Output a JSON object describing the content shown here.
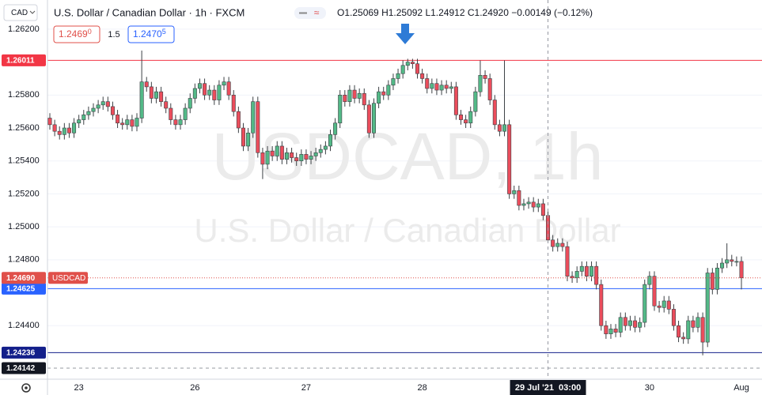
{
  "chart_data": {
    "type": "candlestick",
    "currency": "CAD",
    "title": "U.S. Dollar / Canadian Dollar · 1h · FXCM",
    "legend_values": [
      "O1.25069",
      "H1.25092",
      "L1.24912",
      "C1.24920",
      "−0.00149 (−0.12%)"
    ],
    "sell": {
      "main": "1.2469",
      "pip": "0"
    },
    "spread": "1.5",
    "buy": {
      "main": "1.2470",
      "pip": "5"
    },
    "watermark": [
      "USDCAD, 1h",
      "U.S. Dollar / Canadian Dollar"
    ],
    "up_color": "#53b987",
    "down_color": "#eb4d5c",
    "grid": true,
    "ylim": [
      1.24075,
      1.26377
    ],
    "yticks": [
      {
        "value": 1.262,
        "label": "1.26200"
      },
      {
        "value": 1.258,
        "label": "1.25800"
      },
      {
        "value": 1.256,
        "label": "1.25600"
      },
      {
        "value": 1.254,
        "label": "1.25400"
      },
      {
        "value": 1.252,
        "label": "1.25200"
      },
      {
        "value": 1.25,
        "label": "1.25000"
      },
      {
        "value": 1.248,
        "label": "1.24800"
      },
      {
        "value": 1.244,
        "label": "1.24400"
      }
    ],
    "price_lines": [
      {
        "value": 1.26011,
        "color": "#f23645"
      },
      {
        "value": 1.24625,
        "color": "#2962ff"
      },
      {
        "value": 1.24236,
        "color": "#131f8a"
      }
    ],
    "last_price": {
      "value": 1.2469,
      "label": "1.24690",
      "tag": "USDCAD",
      "color": "#e0504a"
    },
    "crosshair": {
      "index": 103,
      "y_value": 1.24142
    },
    "categories": [
      null,
      null,
      null,
      null,
      null,
      null,
      "23",
      null,
      null,
      null,
      null,
      null,
      null,
      null,
      null,
      null,
      null,
      null,
      null,
      null,
      null,
      null,
      null,
      null,
      null,
      null,
      null,
      null,
      null,
      null,
      "26",
      null,
      null,
      null,
      null,
      null,
      null,
      null,
      null,
      null,
      null,
      null,
      null,
      null,
      null,
      null,
      null,
      null,
      null,
      null,
      null,
      null,
      null,
      "27",
      null,
      null,
      null,
      null,
      null,
      null,
      null,
      null,
      null,
      null,
      null,
      null,
      null,
      null,
      null,
      null,
      null,
      null,
      null,
      null,
      null,
      null,
      null,
      "28",
      null,
      null,
      null,
      null,
      null,
      null,
      null,
      null,
      null,
      null,
      null,
      null,
      null,
      null,
      null,
      null,
      null,
      null,
      null,
      null,
      null,
      null,
      null,
      null,
      null,
      "29 Jul '21  03:00",
      null,
      null,
      null,
      null,
      null,
      null,
      null,
      null,
      null,
      null,
      null,
      null,
      null,
      null,
      null,
      null,
      null,
      null,
      null,
      null,
      "30",
      null,
      null,
      null,
      null,
      null,
      null,
      null,
      null,
      null,
      null,
      null,
      null,
      null,
      null,
      null,
      null,
      null,
      null,
      "Aug"
    ],
    "open": [
      1.2566,
      1.2562,
      1.2558,
      1.2556,
      1.256,
      1.2557,
      1.2563,
      1.2565,
      1.2568,
      1.257,
      1.2572,
      1.2574,
      1.2576,
      1.2573,
      1.2568,
      1.2563,
      1.2562,
      1.2565,
      1.2561,
      1.2566,
      1.2588,
      1.2585,
      1.2578,
      1.2582,
      1.2576,
      1.2572,
      1.2565,
      1.2562,
      1.2565,
      1.2572,
      1.2578,
      1.2584,
      1.2587,
      1.258,
      1.2583,
      1.2577,
      1.2586,
      1.2588,
      1.258,
      1.257,
      1.256,
      1.2549,
      1.2557,
      1.2576,
      1.2545,
      1.2538,
      1.2546,
      1.2543,
      1.2549,
      1.2541,
      1.2545,
      1.2542,
      1.254,
      1.2544,
      1.2541,
      1.2543,
      1.2545,
      1.2547,
      1.2549,
      1.2556,
      1.2563,
      1.258,
      1.2576,
      1.2583,
      1.2578,
      1.2581,
      1.2574,
      1.2557,
      1.2575,
      1.2582,
      1.258,
      1.2586,
      1.259,
      1.2593,
      1.2598,
      1.26,
      1.2599,
      1.2593,
      1.259,
      1.2584,
      1.2587,
      1.2583,
      1.2586,
      1.2584,
      1.2585,
      1.2568,
      1.2565,
      1.2563,
      1.257,
      1.2582,
      1.2592,
      1.259,
      1.2577,
      1.2562,
      1.2558,
      1.2562,
      1.252,
      1.2522,
      1.2513,
      1.2514,
      1.2515,
      1.2512,
      1.2514,
      1.25069,
      1.2492,
      1.2488,
      1.249,
      1.2488,
      1.247,
      1.2469,
      1.2473,
      1.2476,
      1.247,
      1.2476,
      1.2465,
      1.244,
      1.2435,
      1.2438,
      1.2436,
      1.2445,
      1.244,
      1.2443,
      1.2439,
      1.2442,
      1.2465,
      1.247,
      1.2452,
      1.2451,
      1.2455,
      1.245,
      1.244,
      1.2433,
      1.2432,
      1.2443,
      1.2439,
      1.2445,
      1.243,
      1.2472,
      1.2462,
      1.2475,
      1.2478,
      1.248,
      1.2479,
      1.2479
    ],
    "high": [
      1.2569,
      1.2565,
      1.2561,
      1.2563,
      1.2563,
      1.2566,
      1.2568,
      1.2571,
      1.2573,
      1.2575,
      1.2577,
      1.2579,
      1.2579,
      1.2576,
      1.2571,
      1.2566,
      1.2568,
      1.2568,
      1.2569,
      1.2607,
      1.2591,
      1.2588,
      1.2585,
      1.2585,
      1.2579,
      1.2575,
      1.2568,
      1.2568,
      1.2575,
      1.2581,
      1.2587,
      1.259,
      1.259,
      1.2586,
      1.2586,
      1.2589,
      1.2591,
      1.2591,
      1.2583,
      1.2573,
      1.2563,
      1.256,
      1.2579,
      1.2579,
      1.2548,
      1.2549,
      1.2549,
      1.2552,
      1.2552,
      1.2548,
      1.2548,
      1.2545,
      1.2547,
      1.2547,
      1.2546,
      1.2548,
      1.255,
      1.2552,
      1.2559,
      1.2566,
      1.2583,
      1.2583,
      1.2586,
      1.2586,
      1.2584,
      1.2584,
      1.2577,
      1.2578,
      1.2585,
      1.2585,
      1.2589,
      1.2593,
      1.2596,
      1.2601,
      1.2602,
      1.2602,
      1.2602,
      1.2596,
      1.2593,
      1.259,
      1.259,
      1.2589,
      1.2589,
      1.2588,
      1.2588,
      1.2571,
      1.2568,
      1.2573,
      1.2585,
      1.2601,
      1.2595,
      1.2593,
      1.258,
      1.2565,
      1.2601,
      1.2565,
      1.2525,
      1.2525,
      1.2517,
      1.2518,
      1.2518,
      1.2517,
      1.2517,
      1.25092,
      1.2495,
      1.2493,
      1.2493,
      1.2491,
      1.2473,
      1.2476,
      1.2479,
      1.2479,
      1.2479,
      1.2479,
      1.2468,
      1.2443,
      1.2441,
      1.2441,
      1.2448,
      1.2448,
      1.2446,
      1.2446,
      1.2445,
      1.2468,
      1.2473,
      1.2473,
      1.2455,
      1.2458,
      1.2458,
      1.2453,
      1.2443,
      1.2436,
      1.2446,
      1.2446,
      1.2448,
      1.2448,
      1.2475,
      1.2475,
      1.2478,
      1.2481,
      1.249,
      1.2483,
      1.2482,
      1.2482
    ],
    "low": [
      1.2559,
      1.2555,
      1.2553,
      1.2553,
      1.2554,
      1.2554,
      1.256,
      1.2562,
      1.2565,
      1.2567,
      1.2569,
      1.2571,
      1.257,
      1.2565,
      1.256,
      1.2559,
      1.2559,
      1.2558,
      1.2558,
      1.2563,
      1.2582,
      1.2575,
      1.2575,
      1.2573,
      1.2569,
      1.2562,
      1.2559,
      1.2559,
      1.2562,
      1.2569,
      1.2575,
      1.2581,
      1.2577,
      1.2577,
      1.2574,
      1.2574,
      1.2583,
      1.2577,
      1.2567,
      1.2557,
      1.2546,
      1.2546,
      1.2554,
      1.2542,
      1.2529,
      1.2535,
      1.254,
      1.254,
      1.2538,
      1.2538,
      1.2539,
      1.2537,
      1.2537,
      1.2538,
      1.2538,
      1.254,
      1.2542,
      1.2544,
      1.2546,
      1.2553,
      1.256,
      1.2573,
      1.2573,
      1.2575,
      1.2575,
      1.2571,
      1.2554,
      1.2554,
      1.2572,
      1.2577,
      1.2577,
      1.2583,
      1.2587,
      1.259,
      1.2595,
      1.2596,
      1.259,
      1.2587,
      1.2581,
      1.2581,
      1.258,
      1.258,
      1.2581,
      1.2581,
      1.2565,
      1.2562,
      1.256,
      1.256,
      1.2567,
      1.2579,
      1.2587,
      1.2574,
      1.2559,
      1.2555,
      1.2555,
      1.2517,
      1.2517,
      1.251,
      1.251,
      1.2511,
      1.2509,
      1.2509,
      1.2504,
      1.24912,
      1.2485,
      1.2485,
      1.2485,
      1.2467,
      1.2466,
      1.2466,
      1.247,
      1.2467,
      1.2467,
      1.2462,
      1.2437,
      1.2432,
      1.2432,
      1.2433,
      1.2433,
      1.2437,
      1.2437,
      1.2436,
      1.2436,
      1.2439,
      1.2462,
      1.2449,
      1.2448,
      1.2448,
      1.2447,
      1.2437,
      1.243,
      1.2429,
      1.2429,
      1.2436,
      1.2436,
      1.2422,
      1.2427,
      1.2459,
      1.2459,
      1.2472,
      1.2475,
      1.2476,
      1.2476,
      1.2462
    ],
    "close": [
      1.2562,
      1.2558,
      1.2556,
      1.256,
      1.2557,
      1.2563,
      1.2565,
      1.2568,
      1.257,
      1.2572,
      1.2574,
      1.2576,
      1.2573,
      1.2568,
      1.2563,
      1.2562,
      1.2565,
      1.2561,
      1.2566,
      1.2588,
      1.2585,
      1.2578,
      1.2582,
      1.2576,
      1.2572,
      1.2565,
      1.2562,
      1.2565,
      1.2572,
      1.2578,
      1.2584,
      1.2587,
      1.258,
      1.2583,
      1.2577,
      1.2586,
      1.2588,
      1.258,
      1.257,
      1.256,
      1.2549,
      1.2557,
      1.2576,
      1.2545,
      1.2538,
      1.2546,
      1.2543,
      1.2549,
      1.2541,
      1.2545,
      1.2542,
      1.254,
      1.2544,
      1.2541,
      1.2543,
      1.2545,
      1.2547,
      1.2549,
      1.2556,
      1.2563,
      1.258,
      1.2576,
      1.2583,
      1.2578,
      1.2581,
      1.2574,
      1.2557,
      1.2575,
      1.2582,
      1.258,
      1.2586,
      1.259,
      1.2593,
      1.2598,
      1.26,
      1.2599,
      1.2593,
      1.259,
      1.2584,
      1.2587,
      1.2583,
      1.2586,
      1.2584,
      1.2585,
      1.2568,
      1.2565,
      1.2563,
      1.257,
      1.2582,
      1.2592,
      1.259,
      1.2577,
      1.2562,
      1.2558,
      1.2562,
      1.252,
      1.2522,
      1.2513,
      1.2514,
      1.2515,
      1.2512,
      1.2514,
      1.25069,
      1.2492,
      1.2488,
      1.249,
      1.2488,
      1.247,
      1.2469,
      1.2473,
      1.2476,
      1.247,
      1.2476,
      1.2465,
      1.244,
      1.2435,
      1.2438,
      1.2436,
      1.2445,
      1.244,
      1.2443,
      1.2439,
      1.2442,
      1.2465,
      1.247,
      1.2452,
      1.2451,
      1.2455,
      1.245,
      1.244,
      1.2433,
      1.2432,
      1.2443,
      1.2439,
      1.2445,
      1.243,
      1.2472,
      1.2462,
      1.2475,
      1.2478,
      1.248,
      1.2479,
      1.2479,
      1.2469
    ]
  }
}
